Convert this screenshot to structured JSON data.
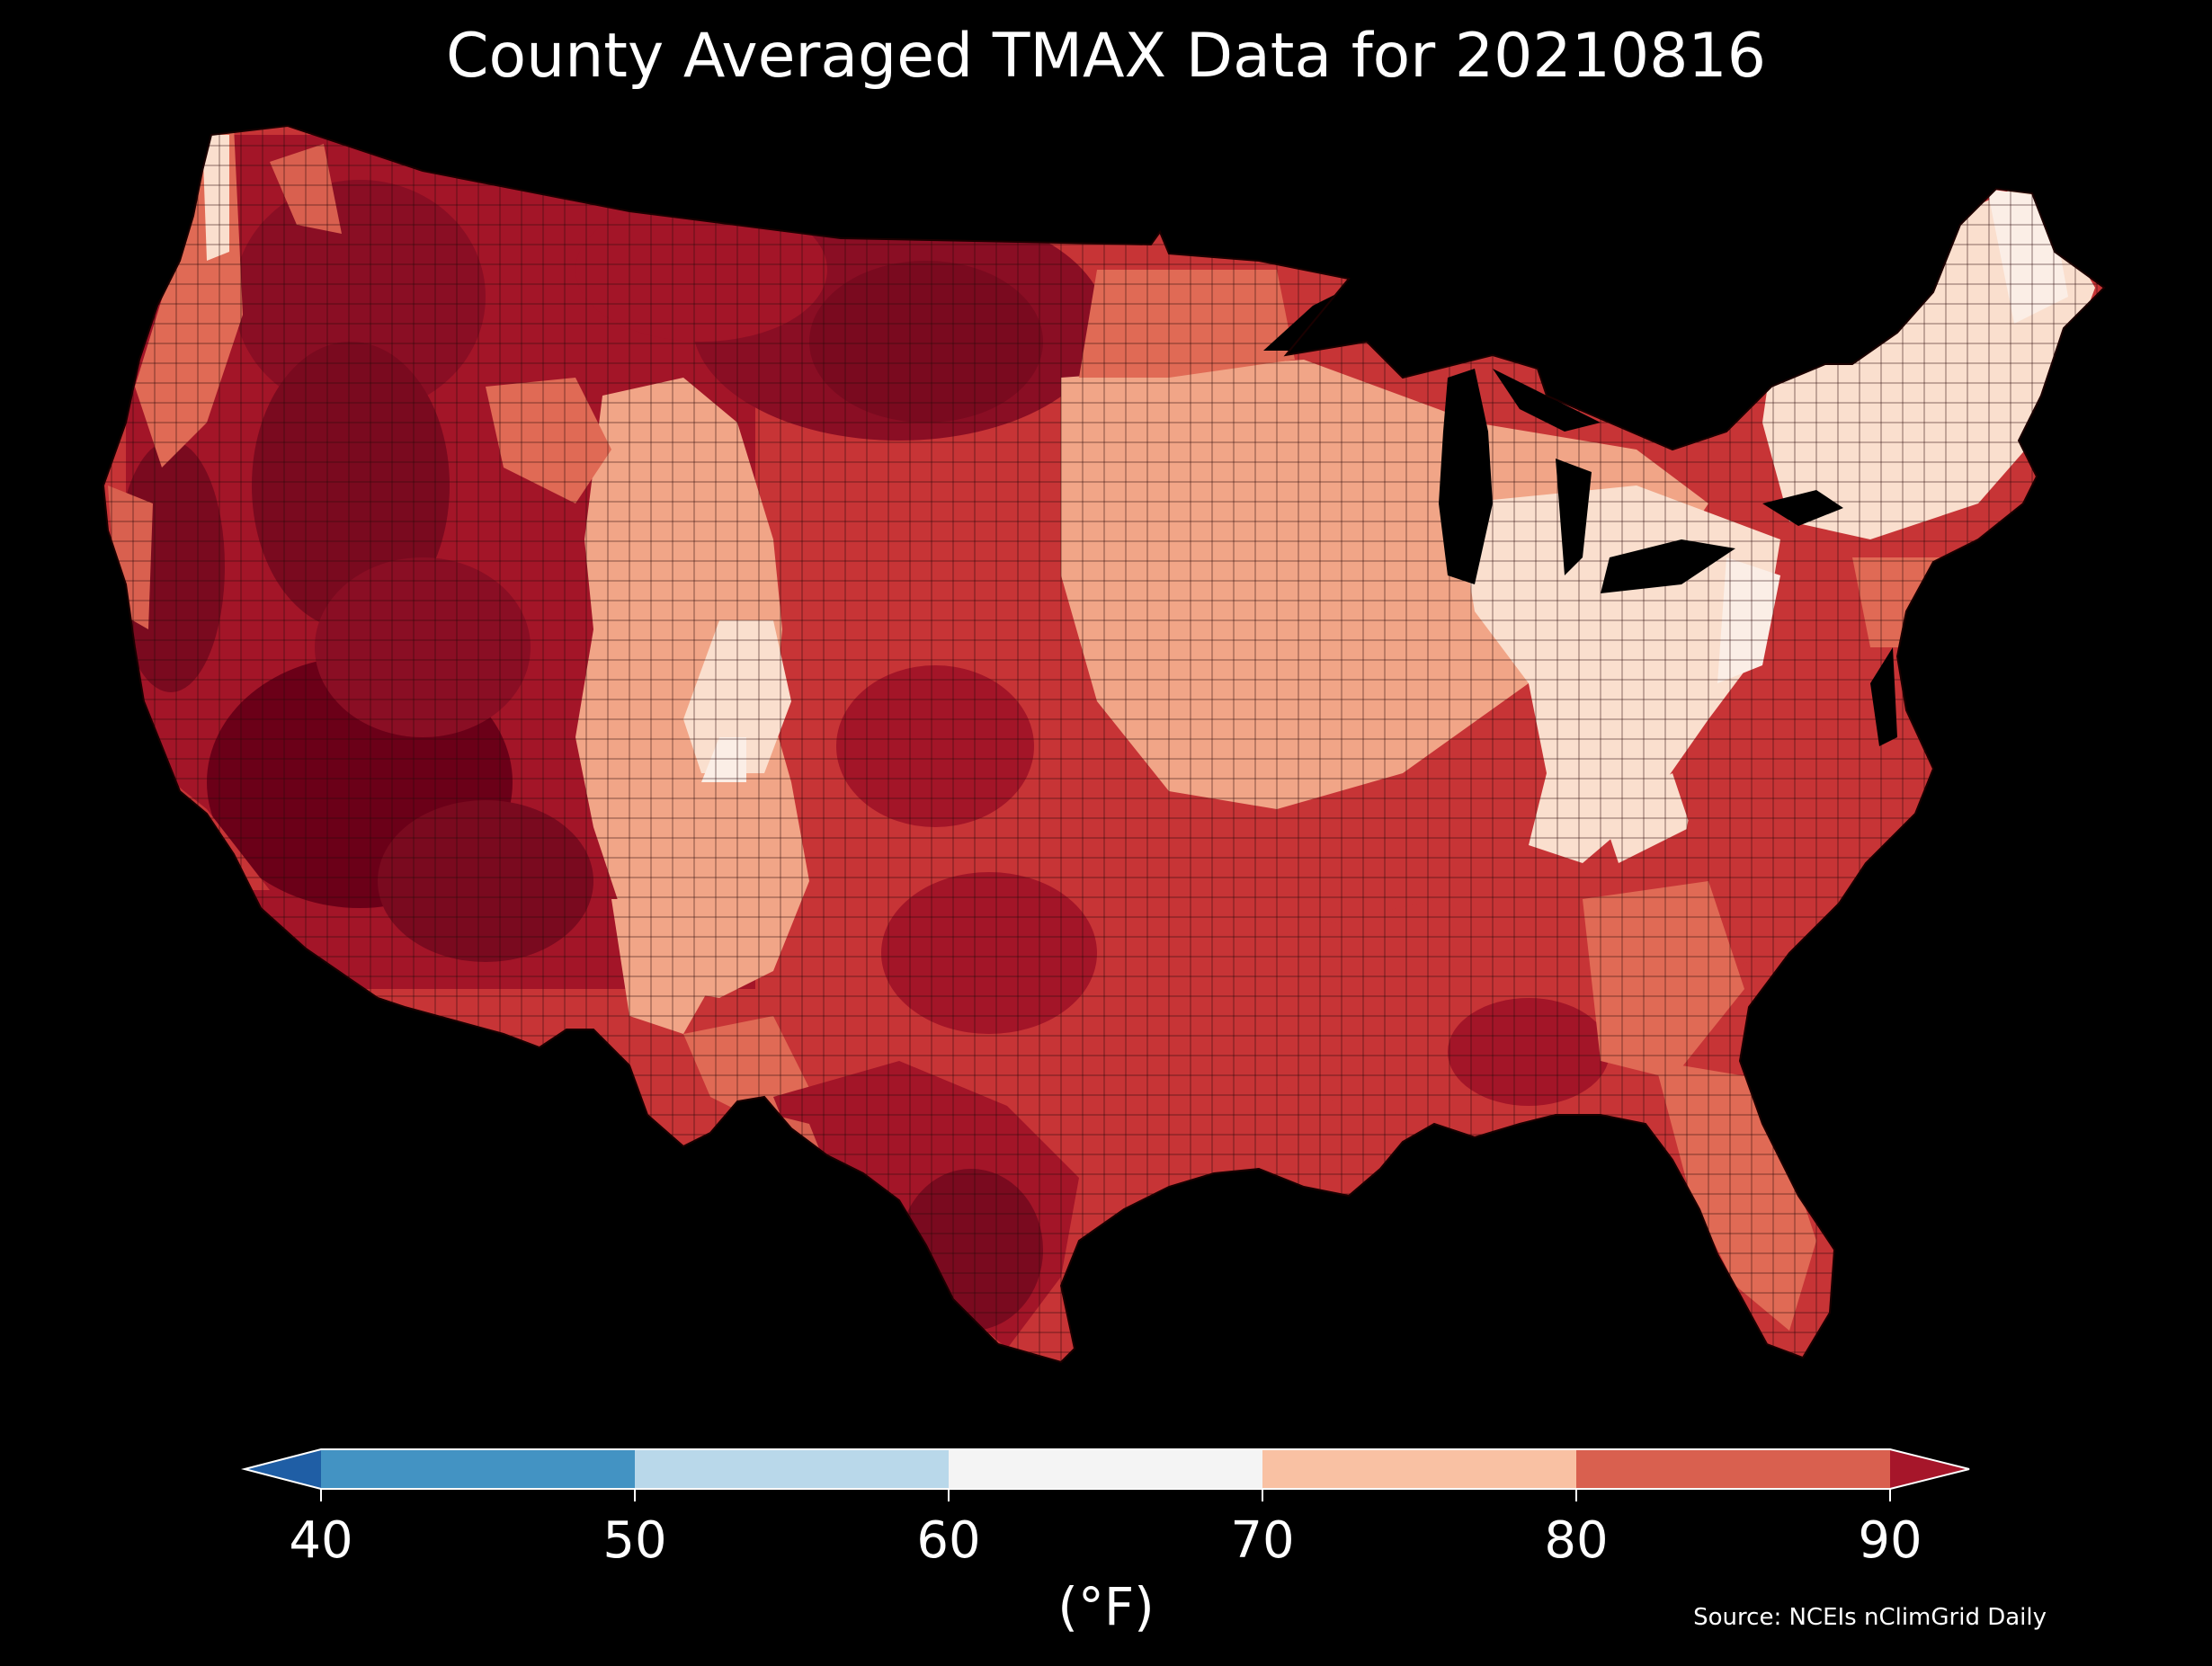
{
  "title": "County Averaged TMAX Data for 20210816",
  "colorbar": {
    "ticks": [
      "40",
      "50",
      "60",
      "70",
      "80",
      "90"
    ],
    "unit": "(°F)",
    "bins": [
      {
        "range": [
          40,
          50
        ],
        "color": "#4393c3"
      },
      {
        "range": [
          50,
          60
        ],
        "color": "#b9d8ea"
      },
      {
        "range": [
          60,
          70
        ],
        "color": "#f4f4f4"
      },
      {
        "range": [
          70,
          80
        ],
        "color": "#f9c1a3"
      },
      {
        "range": [
          80,
          90
        ],
        "color": "#d9604f"
      }
    ],
    "under_color": "#1f5ea5",
    "over_color": "#a6162a"
  },
  "source": "Source: NCEIs nClimGrid Daily",
  "map": {
    "region": "Contiguous United States",
    "variable": "TMAX",
    "palette": {
      "hot": "#6b0018",
      "very_warm": "#a31528",
      "warm": "#c73436",
      "mild_warm": "#e06a55",
      "mild": "#f1a587",
      "cool": "#fadfce",
      "coolest": "#fbeee6",
      "county_border": "#2a0a0a"
    }
  }
}
